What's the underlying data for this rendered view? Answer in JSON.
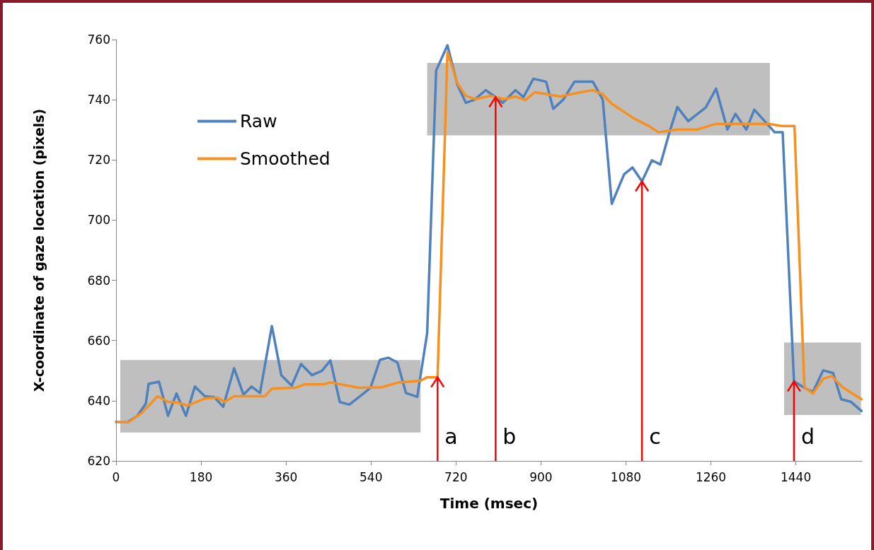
{
  "chart_data": {
    "type": "line",
    "xlabel": "Time (msec)",
    "ylabel": "X-coordinate of gaze location (pixels)",
    "xlim": [
      0,
      1580
    ],
    "xticks": [
      0,
      180,
      360,
      540,
      720,
      900,
      1080,
      1260,
      1440
    ],
    "ylim": [
      620,
      760
    ],
    "yticks": [
      620,
      640,
      660,
      680,
      700,
      720,
      740,
      760
    ],
    "grid": false,
    "legend": "top left",
    "marker": "none",
    "line_style": "solid",
    "series": [
      {
        "name": "Raw",
        "color": "#4f81bd",
        "x": [
          0,
          25,
          44,
          63,
          69,
          91,
          110,
          128,
          148,
          167,
          188,
          208,
          227,
          250,
          270,
          287,
          305,
          330,
          350,
          372,
          392,
          415,
          436,
          454,
          474,
          494,
          517,
          539,
          559,
          577,
          596,
          614,
          638,
          659,
          678,
          702,
          723,
          741,
          759,
          783,
          804,
          819,
          846,
          863,
          884,
          911,
          926,
          947,
          971,
          1010,
          1031,
          1050,
          1076,
          1094,
          1114,
          1135,
          1153,
          1171,
          1189,
          1212,
          1249,
          1271,
          1295,
          1312,
          1335,
          1352,
          1383,
          1395,
          1412,
          1436,
          1458,
          1476,
          1498,
          1519,
          1536,
          1557,
          1579
        ],
        "values": [
          633,
          633,
          634.8,
          639,
          645.6,
          646.3,
          635,
          642.4,
          635,
          644.7,
          641.5,
          641.2,
          638,
          650.8,
          642,
          644.7,
          642.6,
          664.8,
          648.5,
          645,
          652.2,
          648.5,
          649.9,
          653.4,
          639.6,
          638.7,
          641.5,
          644.3,
          653.6,
          654.3,
          652.7,
          642.6,
          641.3,
          662.5,
          749.7,
          758.1,
          745,
          739,
          740,
          743.2,
          740.9,
          739,
          743.2,
          740.9,
          747,
          746,
          737,
          740,
          746,
          746,
          740,
          705.4,
          715.2,
          717.5,
          712.9,
          719.9,
          718.5,
          728.5,
          737.6,
          732.9,
          737.4,
          743.7,
          730.1,
          735.3,
          730.1,
          736.7,
          731.3,
          729.2,
          729.2,
          646.4,
          644.3,
          642.9,
          650.1,
          649.2,
          640.5,
          639.6,
          636.6
        ]
      },
      {
        "name": "Smoothed",
        "color": "#f7901e",
        "x": [
          3,
          28,
          55,
          88,
          110,
          130,
          151,
          190,
          215,
          230,
          250,
          315,
          330,
          379,
          399,
          439,
          454,
          514,
          563,
          599,
          644,
          659,
          681,
          702,
          723,
          741,
          762,
          792,
          822,
          846,
          867,
          887,
          941,
          977,
          1010,
          1031,
          1049,
          1096,
          1126,
          1149,
          1189,
          1231,
          1271,
          1383,
          1410,
          1437,
          1458,
          1476,
          1498,
          1516,
          1539,
          1579
        ],
        "values": [
          633,
          633,
          636,
          641.5,
          639.6,
          639.4,
          638.4,
          640.8,
          641,
          639.6,
          641.5,
          641.5,
          644,
          644.3,
          645.4,
          645.4,
          646.1,
          644.3,
          644.5,
          646.1,
          646.6,
          647.8,
          647.8,
          755.8,
          745.5,
          741.3,
          740.2,
          741.3,
          740.2,
          741.1,
          739.9,
          742.5,
          741.1,
          742.3,
          743.2,
          741.8,
          738.8,
          733.9,
          731.5,
          729.2,
          730.1,
          730.1,
          732,
          732,
          731.3,
          731.3,
          644.5,
          642.4,
          647.3,
          648.2,
          644.5,
          640.5
        ]
      }
    ],
    "bands": [
      {
        "axis": "x",
        "from": 9,
        "to": 645,
        "color": "#bfbfbf"
      },
      {
        "axis": "x",
        "from": 659,
        "to": 1385,
        "color": "#bfbfbf"
      },
      {
        "axis": "x",
        "from": 1415,
        "to": 1578,
        "color": "#bfbfbf"
      }
    ],
    "annotations": [
      {
        "text": "a",
        "x": 681,
        "y": 647.8
      },
      {
        "text": "b",
        "x": 804,
        "y": 740.9
      },
      {
        "text": "c",
        "x": 1114,
        "y": 712.9
      },
      {
        "text": "d",
        "x": 1436,
        "y": 646.4
      }
    ]
  }
}
